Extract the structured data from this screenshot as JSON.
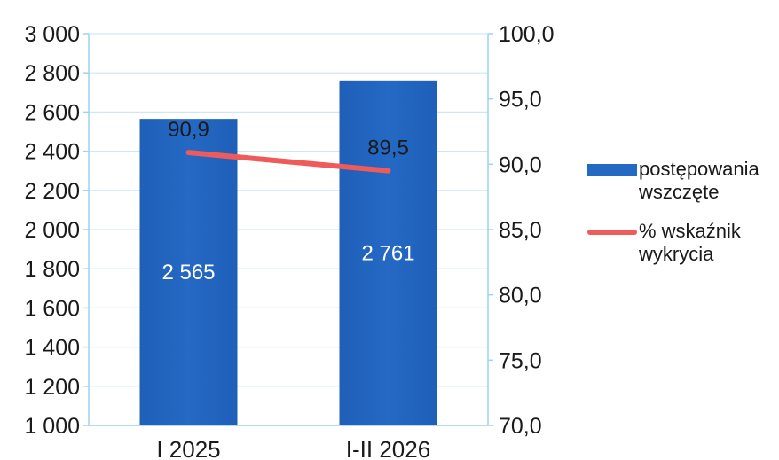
{
  "chart_data": {
    "type": "bar",
    "categories": [
      "I 2025",
      "I-II 2026"
    ],
    "series": [
      {
        "name": "postępowania wszczęte",
        "type": "bar",
        "axis": "left",
        "values": [
          2565,
          2761
        ],
        "labels": [
          "2 565",
          "2 761"
        ],
        "color": "#2469c4"
      },
      {
        "name": "% wskaźnik wykrycia",
        "type": "line",
        "axis": "right",
        "values": [
          90.9,
          89.5
        ],
        "labels": [
          "90,9",
          "89,5"
        ],
        "color": "#ef5a5a"
      }
    ],
    "y_left": {
      "min": 1000,
      "max": 3000,
      "ticks": [
        "1 000",
        "1 200",
        "1 400",
        "1 600",
        "1 800",
        "2 000",
        "2 200",
        "2 400",
        "2 600",
        "2 800",
        "3 000"
      ]
    },
    "y_right": {
      "min": 70,
      "max": 100,
      "ticks": [
        "70,0",
        "75,0",
        "80,0",
        "85,0",
        "90,0",
        "95,0",
        "100,0"
      ]
    },
    "grid": true,
    "legend_position": "right",
    "legend": {
      "bar_label_line1": "postępowania",
      "bar_label_line2": "wszczęte",
      "line_label_line1": "% wskaźnik",
      "line_label_line2": "wykrycia"
    }
  }
}
